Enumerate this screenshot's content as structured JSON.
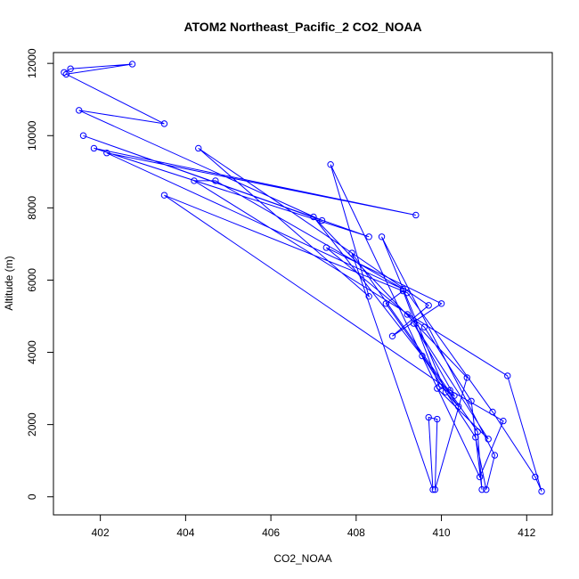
{
  "chart_data": {
    "type": "line",
    "title": "ATOM2 Northeast_Pacific_2 CO2_NOAA",
    "xlabel": "CO2_NOAA",
    "ylabel": "Altitude (m)",
    "xlim": [
      400.9,
      412.6
    ],
    "ylim": [
      -500,
      12300
    ],
    "xticks": [
      402,
      404,
      406,
      408,
      410,
      412
    ],
    "yticks": [
      0,
      2000,
      4000,
      6000,
      8000,
      10000,
      12000
    ],
    "grid": false,
    "marker": "open-circle",
    "line_color": "#0000ff",
    "series": [
      {
        "x": [
          401.15,
          401.3,
          402.75,
          401.2,
          403.5,
          401.5,
          407.2,
          401.6,
          408.3,
          401.85,
          409.4,
          402.15,
          409.1,
          404.7,
          404.2,
          411.55,
          412.35,
          412.2,
          411.2,
          409.2,
          403.5,
          410.2,
          411.45,
          410.9,
          407.4,
          408.3,
          404.3,
          409.7,
          408.85,
          410.0,
          407.3,
          409.2,
          409.6,
          410.7,
          410.95,
          410.85,
          407.9,
          409.8,
          409.7,
          409.9,
          409.85,
          410.6,
          407.0,
          409.55,
          410.8,
          411.05,
          411.25,
          408.6,
          410.1,
          410.4,
          408.7,
          409.1,
          409.95,
          410.3,
          409.35,
          411.1,
          409.9
        ],
        "y": [
          11750,
          11850,
          11980,
          11700,
          10330,
          10700,
          7650,
          10000,
          7200,
          9650,
          7800,
          9520,
          5750,
          8750,
          8750,
          3350,
          150,
          550,
          2350,
          5650,
          8350,
          2950,
          2100,
          550,
          9200,
          5550,
          9650,
          5300,
          4450,
          5350,
          6900,
          5050,
          4700,
          2650,
          200,
          1800,
          6750,
          200,
          2200,
          2150,
          200,
          3300,
          7750,
          3900,
          1650,
          200,
          1150,
          7200,
          2900,
          2500,
          5350,
          5700,
          3050,
          2800,
          4800,
          1600,
          3000
        ]
      }
    ]
  }
}
